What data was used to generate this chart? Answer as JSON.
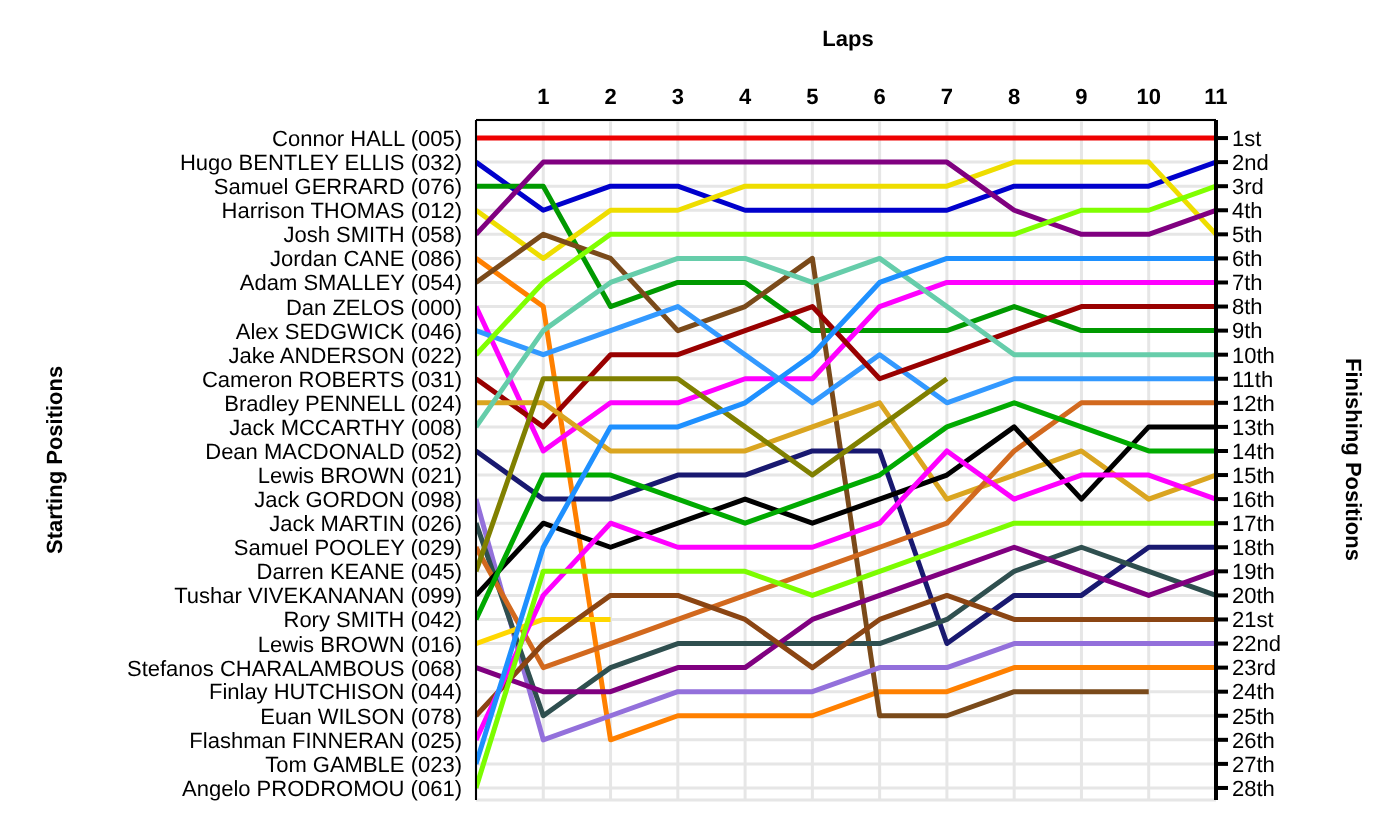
{
  "chart_data": {
    "type": "line",
    "xlabel": "Laps",
    "legend_title": "Starting Positions",
    "ylabel": "Finishing Positions",
    "x": [
      0,
      1,
      2,
      3,
      4,
      5,
      6,
      7,
      8,
      9,
      10,
      11
    ],
    "xlim": [
      0,
      11
    ],
    "xticks": [
      1,
      2,
      3,
      4,
      5,
      6,
      7,
      8,
      9,
      10,
      11
    ],
    "ylim": [
      28.5,
      0.25
    ],
    "yticks": [
      {
        "value": 1,
        "label": "1st"
      },
      {
        "value": 2,
        "label": "2nd"
      },
      {
        "value": 3,
        "label": "3rd"
      },
      {
        "value": 4,
        "label": "4th"
      },
      {
        "value": 5,
        "label": "5th"
      },
      {
        "value": 6,
        "label": "6th"
      },
      {
        "value": 7,
        "label": "7th"
      },
      {
        "value": 8,
        "label": "8th"
      },
      {
        "value": 9,
        "label": "9th"
      },
      {
        "value": 10,
        "label": "10th"
      },
      {
        "value": 11,
        "label": "11th"
      },
      {
        "value": 12,
        "label": "12th"
      },
      {
        "value": 13,
        "label": "13th"
      },
      {
        "value": 14,
        "label": "14th"
      },
      {
        "value": 15,
        "label": "15th"
      },
      {
        "value": 16,
        "label": "16th"
      },
      {
        "value": 17,
        "label": "17th"
      },
      {
        "value": 18,
        "label": "18th"
      },
      {
        "value": 19,
        "label": "19th"
      },
      {
        "value": 20,
        "label": "20th"
      },
      {
        "value": 21,
        "label": "21st"
      },
      {
        "value": 22,
        "label": "22nd"
      },
      {
        "value": 23,
        "label": "23rd"
      },
      {
        "value": 24,
        "label": "24th"
      },
      {
        "value": 25,
        "label": "25th"
      },
      {
        "value": 26,
        "label": "26th"
      },
      {
        "value": 27,
        "label": "27th"
      },
      {
        "value": 28,
        "label": "28th"
      }
    ],
    "grid": true,
    "annotations": [
      "Lewis BROWN (021)",
      "Finlay HUTCHISON (044)"
    ],
    "series": [
      {
        "name": "Connor HALL (005)",
        "color": "#ee0000",
        "values": [
          1,
          1,
          1,
          1,
          1,
          1,
          1,
          1,
          1,
          1,
          1,
          1
        ]
      },
      {
        "name": "Hugo BENTLEY ELLIS (032)",
        "color": "#0000cc",
        "values": [
          2,
          4,
          3,
          3,
          4,
          4,
          4,
          4,
          3,
          3,
          3,
          2
        ]
      },
      {
        "name": "Samuel GERRARD (076)",
        "color": "#009900",
        "values": [
          3,
          3,
          8,
          7,
          7,
          9,
          9,
          9,
          8,
          9,
          9,
          9
        ]
      },
      {
        "name": "Harrison THOMAS (012)",
        "color": "#eedd00",
        "values": [
          4,
          6,
          4,
          4,
          3,
          3,
          3,
          3,
          2,
          2,
          2,
          5
        ]
      },
      {
        "name": "Josh SMITH (058)",
        "color": "#800080",
        "values": [
          5,
          2,
          2,
          2,
          2,
          2,
          2,
          2,
          4,
          5,
          5,
          4
        ]
      },
      {
        "name": "Jordan CANE (086)",
        "color": "#ff8000",
        "values": [
          6,
          8,
          26,
          25,
          25,
          25,
          24,
          24,
          23,
          23,
          23,
          23
        ]
      },
      {
        "name": "Adam SMALLEY (054)",
        "color": "#7a4a1a",
        "values": [
          7,
          5,
          6,
          9,
          8,
          6,
          25,
          25,
          24,
          24,
          24,
          null
        ]
      },
      {
        "name": "Dan ZELOS (000)",
        "color": "#ff00ff",
        "values": [
          8,
          14,
          12,
          12,
          11,
          11,
          8,
          7,
          7,
          7,
          7,
          7
        ]
      },
      {
        "name": "Alex SEDGWICK (046)",
        "color": "#3399ff",
        "values": [
          9,
          10,
          9,
          8,
          10,
          12,
          10,
          12,
          11,
          11,
          11,
          11
        ]
      },
      {
        "name": "Jake ANDERSON (022)",
        "color": "#80ff00",
        "values": [
          10,
          7,
          5,
          5,
          5,
          5,
          5,
          5,
          5,
          4,
          4,
          3
        ]
      },
      {
        "name": "Cameron ROBERTS (031)",
        "color": "#990000",
        "values": [
          11,
          13,
          10,
          10,
          9,
          8,
          11,
          10,
          9,
          8,
          8,
          8
        ]
      },
      {
        "name": "Bradley PENNELL (024)",
        "color": "#daa520",
        "values": [
          12,
          12,
          14,
          14,
          14,
          13,
          12,
          16,
          15,
          14,
          16,
          15
        ]
      },
      {
        "name": "Jack MCCARTHY (008)",
        "color": "#66cdaa",
        "values": [
          13,
          9,
          7,
          6,
          6,
          7,
          6,
          8,
          10,
          10,
          10,
          10
        ]
      },
      {
        "name": "Dean MACDONALD (052)",
        "color": "#191970",
        "values": [
          14,
          16,
          16,
          15,
          15,
          14,
          14,
          22,
          20,
          20,
          18,
          18
        ]
      },
      {
        "name": "Jack GORDON (098)",
        "color": "#9370db",
        "values": [
          16,
          26,
          25,
          24,
          24,
          24,
          23,
          23,
          22,
          22,
          22,
          22
        ]
      },
      {
        "name": "Jack MARTIN (026)",
        "color": "#2f4f4f",
        "values": [
          17,
          25,
          23,
          22,
          22,
          22,
          22,
          21,
          19,
          18,
          19,
          20
        ]
      },
      {
        "name": "Samuel POOLEY (029)",
        "color": "#d2691e",
        "values": [
          18,
          23,
          22,
          21,
          20,
          19,
          18,
          17,
          14,
          12,
          12,
          12
        ]
      },
      {
        "name": "Darren KEANE (045)",
        "color": "#808000",
        "values": [
          19,
          11,
          11,
          11,
          13,
          15,
          13,
          11,
          null,
          null,
          null,
          null
        ]
      },
      {
        "name": "Tushar VIVEKANANAN (099)",
        "color": "#000000",
        "values": [
          20,
          17,
          18,
          17,
          16,
          17,
          16,
          15,
          13,
          16,
          13,
          13
        ]
      },
      {
        "name": "Rory SMITH (042)",
        "color": "#00aa00",
        "values": [
          21,
          15,
          15,
          16,
          17,
          16,
          15,
          13,
          12,
          13,
          14,
          14
        ]
      },
      {
        "name": "Lewis BROWN (016)",
        "color": "#ffd700",
        "values": [
          22,
          21,
          21,
          null,
          null,
          null,
          null,
          null,
          null,
          null,
          null,
          null
        ]
      },
      {
        "name": "Stefanos CHARALAMBOUS (068)",
        "color": "#800080",
        "values": [
          23,
          24,
          24,
          23,
          23,
          21,
          20,
          19,
          18,
          19,
          20,
          19
        ]
      },
      {
        "name": "Euan WILSON (078)",
        "color": "#8b4513",
        "values": [
          25,
          22,
          20,
          20,
          21,
          23,
          21,
          20,
          21,
          21,
          21,
          21
        ]
      },
      {
        "name": "Flashman FINNERAN (025)",
        "color": "#ff00ff",
        "values": [
          26,
          20,
          17,
          18,
          18,
          18,
          17,
          14,
          16,
          15,
          15,
          16
        ]
      },
      {
        "name": "Tom GAMBLE (023)",
        "color": "#1e90ff",
        "values": [
          27,
          18,
          13,
          13,
          12,
          10,
          7,
          6,
          6,
          6,
          6,
          6
        ]
      },
      {
        "name": "Angelo PRODROMOU (061)",
        "color": "#7cfc00",
        "values": [
          28,
          19,
          19,
          19,
          19,
          20,
          19,
          18,
          17,
          17,
          17,
          17
        ]
      }
    ]
  }
}
